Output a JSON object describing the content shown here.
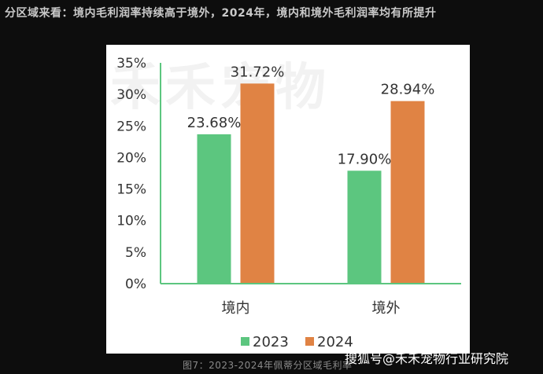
{
  "heading": "分区域来看：境内毛利润率持续高于境外，2024年，境内和境外毛利润率均有所提升",
  "watermark": "禾禾宠物",
  "caption": "图7：2023-2024年佩蒂分区域毛利率",
  "credit": "搜狐号@禾禾宠物行业研究院",
  "colors": {
    "2023": "#5cc67f",
    "2024": "#e08344",
    "axis": "#5cc67f"
  },
  "chart_data": {
    "type": "bar",
    "categories": [
      "境内",
      "境外"
    ],
    "series": [
      {
        "name": "2023",
        "values": [
          23.68,
          17.9
        ],
        "labels": [
          "23.68%",
          "17.90%"
        ]
      },
      {
        "name": "2024",
        "values": [
          31.72,
          28.94
        ],
        "labels": [
          "31.72%",
          "28.94%"
        ]
      }
    ],
    "yticks": [
      "0%",
      "5%",
      "10%",
      "15%",
      "20%",
      "25%",
      "30%",
      "35%"
    ],
    "ylim": [
      0,
      35
    ],
    "legend_position": "bottom"
  }
}
